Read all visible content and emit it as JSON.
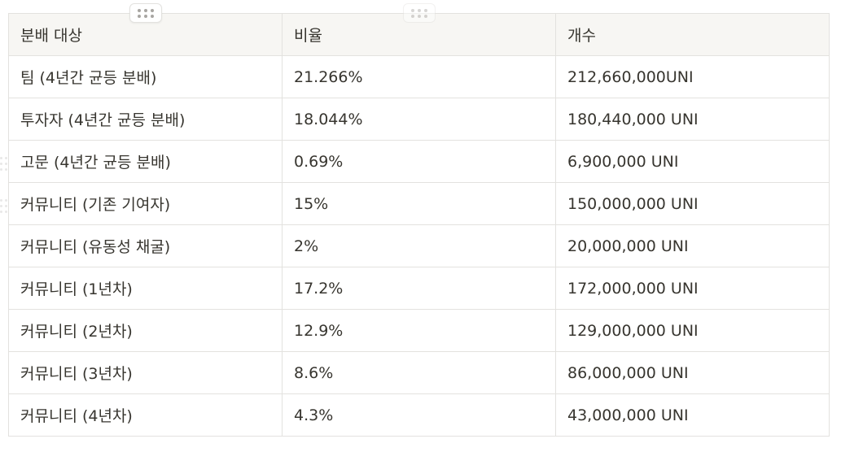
{
  "table": {
    "headers": [
      "분배 대상",
      "비율",
      "개수"
    ],
    "rows": [
      [
        "팀 (4년간 균등 분배)",
        "21.266%",
        "212,660,000UNI"
      ],
      [
        "투자자 (4년간 균등 분배)",
        "18.044%",
        "180,440,000 UNI"
      ],
      [
        "고문 (4년간 균등 분배)",
        "0.69%",
        "6,900,000 UNI"
      ],
      [
        "커뮤니티 (기존 기여자)",
        "15%",
        "150,000,000 UNI"
      ],
      [
        "커뮤니티 (유동성 채굴)",
        "2%",
        "20,000,000 UNI"
      ],
      [
        "커뮤니티 (1년차)",
        "17.2%",
        "172,000,000 UNI"
      ],
      [
        "커뮤니티 (2년차)",
        "12.9%",
        "129,000,000 UNI"
      ],
      [
        "커뮤니티 (3년차)",
        "8.6%",
        "86,000,000 UNI"
      ],
      [
        "커뮤니티 (4년차)",
        "4.3%",
        "43,000,000 UNI"
      ]
    ]
  },
  "icons": {
    "column_handle": "drag-handle-icon",
    "row_handle": "row-drag-handle-icon"
  },
  "colors": {
    "header_bg": "#f7f6f3",
    "border": "#e3e2df",
    "text": "#37352f"
  }
}
